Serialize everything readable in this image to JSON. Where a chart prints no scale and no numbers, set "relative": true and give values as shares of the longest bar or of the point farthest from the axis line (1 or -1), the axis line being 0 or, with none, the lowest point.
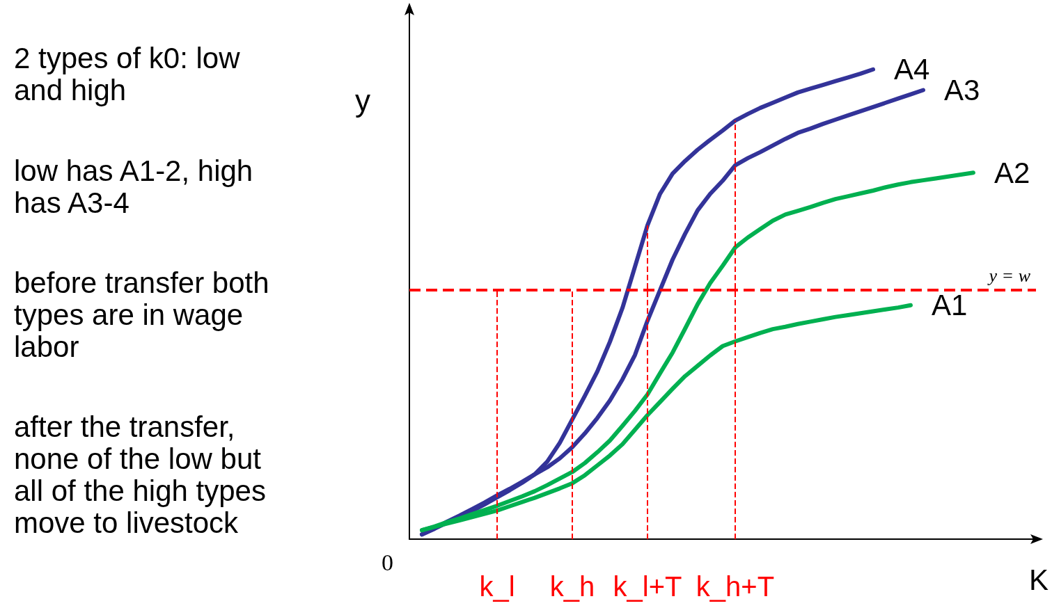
{
  "chart_data": {
    "type": "line",
    "relative": true,
    "xlabel": "K",
    "ylabel": "y",
    "legend": false,
    "grid": false,
    "marker": "none",
    "line_style": "solid",
    "categories": [
      null,
      null,
      null,
      null,
      null,
      null,
      null,
      "k_l",
      null,
      null,
      null,
      null,
      null,
      "k_h",
      null,
      null,
      null,
      null,
      null,
      "k_l+T",
      null,
      null,
      null,
      null,
      null,
      null,
      "k_h+T",
      null,
      null,
      null,
      null,
      null,
      null,
      null,
      null,
      null,
      null,
      null,
      null,
      null,
      null,
      null,
      null,
      null,
      null,
      null,
      null,
      null,
      null,
      null,
      null
    ],
    "annotations": [
      "2 types of k0: low and high",
      "low has A1-2, high has A3-4",
      "before transfer both types are in wage labor",
      "after the transfer, none of the low but all of the high types move to livestock",
      "0"
    ],
    "series": [
      {
        "name": "A4",
        "color": "#333399",
        "values": [
          null,
          0.01,
          0.022,
          0.035,
          0.047,
          0.06,
          0.074,
          0.089,
          0.104,
          0.12,
          0.138,
          0.165,
          0.205,
          0.255,
          0.305,
          0.357,
          0.42,
          0.492,
          0.58,
          0.668,
          0.735,
          0.778,
          0.805,
          0.829,
          0.85,
          0.87,
          0.891,
          0.905,
          0.918,
          0.929,
          0.94,
          0.951,
          0.959,
          0.967,
          0.975,
          0.983,
          0.991,
          1.0,
          null,
          null,
          null,
          null,
          null,
          null,
          null,
          null,
          null,
          null,
          null,
          null,
          null
        ]
      },
      {
        "name": "A3",
        "color": "#333399",
        "values": [
          null,
          0.01,
          0.023,
          0.037,
          0.05,
          0.064,
          0.078,
          0.093,
          0.107,
          0.122,
          0.138,
          0.153,
          0.172,
          0.196,
          0.225,
          0.258,
          0.295,
          0.34,
          0.392,
          0.465,
          0.53,
          0.595,
          0.65,
          0.7,
          0.735,
          0.763,
          0.796,
          0.811,
          0.824,
          0.838,
          0.852,
          0.865,
          0.874,
          0.884,
          0.893,
          0.902,
          0.911,
          0.92,
          0.929,
          0.938,
          0.947,
          0.956,
          null,
          null,
          null,
          null,
          null,
          null,
          null,
          null,
          null
        ]
      },
      {
        "name": "A2",
        "color": "#00b050",
        "values": [
          null,
          0.019,
          0.027,
          0.036,
          0.044,
          0.053,
          0.062,
          0.071,
          0.081,
          0.091,
          0.102,
          0.115,
          0.129,
          0.143,
          0.162,
          0.185,
          0.21,
          0.241,
          0.273,
          0.308,
          0.353,
          0.397,
          0.448,
          0.5,
          0.545,
          0.582,
          0.621,
          0.642,
          0.66,
          0.678,
          0.691,
          0.699,
          0.707,
          0.716,
          0.724,
          0.73,
          0.736,
          0.742,
          0.749,
          0.755,
          0.76,
          0.764,
          0.768,
          0.772,
          0.776,
          0.78,
          null,
          null,
          null,
          null,
          null
        ]
      },
      {
        "name": "A1",
        "color": "#00b050",
        "values": [
          null,
          0.019,
          0.026,
          0.033,
          0.04,
          0.047,
          0.054,
          0.061,
          0.07,
          0.079,
          0.088,
          0.098,
          0.108,
          0.119,
          0.136,
          0.157,
          0.178,
          0.202,
          0.233,
          0.264,
          0.292,
          0.32,
          0.347,
          0.369,
          0.391,
          0.411,
          0.421,
          0.43,
          0.439,
          0.447,
          0.452,
          0.458,
          0.463,
          0.468,
          0.473,
          0.477,
          0.481,
          0.485,
          0.489,
          0.493,
          0.498,
          null,
          null,
          null,
          null,
          null,
          null,
          null,
          null,
          null,
          null
        ]
      }
    ],
    "ref_lines": [
      {
        "axis": "y",
        "value": 0.532,
        "label": "y = w",
        "color": "#ff0000",
        "line_style": "dashed"
      },
      {
        "axis": "x",
        "value": "k_l",
        "color": "#ff0000",
        "line_style": "dashed"
      },
      {
        "axis": "x",
        "value": "k_h",
        "color": "#ff0000",
        "line_style": "dashed"
      },
      {
        "axis": "x",
        "value": "k_l+T",
        "color": "#ff0000",
        "line_style": "dashed"
      },
      {
        "axis": "x",
        "value": "k_h+T",
        "color": "#ff0000",
        "line_style": "dashed"
      }
    ]
  }
}
